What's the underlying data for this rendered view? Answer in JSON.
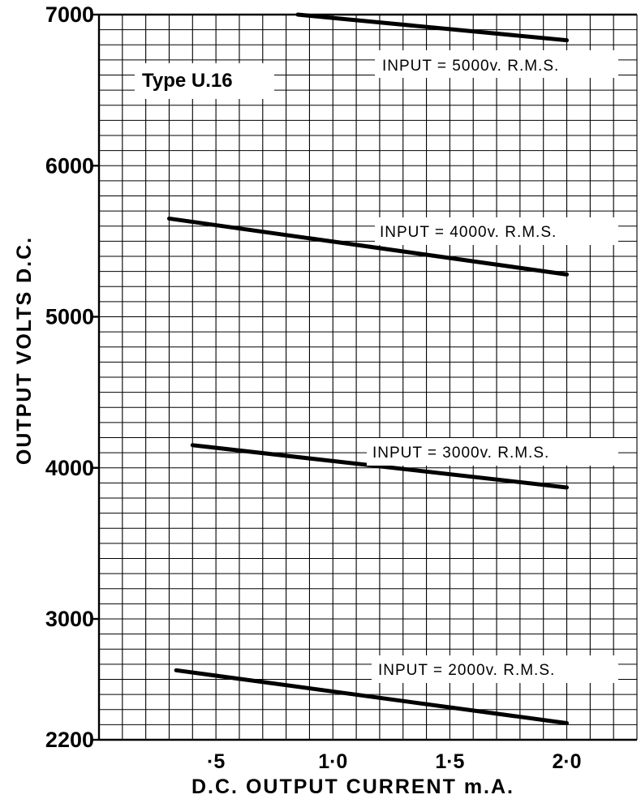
{
  "chart_data": {
    "type": "line",
    "title": "",
    "annotation": "Type U.16",
    "xlabel": "D.C. OUTPUT CURRENT m.A.",
    "ylabel": "OUTPUT VOLTS D.C.",
    "xlim": [
      0,
      2.3
    ],
    "ylim": [
      2200,
      7000
    ],
    "xticks": [
      {
        "value": 0.5,
        "label": "·5"
      },
      {
        "value": 1.0,
        "label": "1·0"
      },
      {
        "value": 1.5,
        "label": "1·5"
      },
      {
        "value": 2.0,
        "label": "2·0"
      }
    ],
    "yticks": [
      {
        "value": 2200,
        "label": "2200"
      },
      {
        "value": 3000,
        "label": "3000"
      },
      {
        "value": 4000,
        "label": "4000"
      },
      {
        "value": 5000,
        "label": "5000"
      },
      {
        "value": 6000,
        "label": "6000"
      },
      {
        "value": 7000,
        "label": "7000"
      }
    ],
    "grid": true,
    "series": [
      {
        "name": "INPUT = 5000v. R.M.S.",
        "x": [
          0.85,
          2.0
        ],
        "y": [
          7000,
          6830
        ]
      },
      {
        "name": "INPUT = 4000v. R.M.S.",
        "x": [
          0.3,
          2.0
        ],
        "y": [
          5650,
          5280
        ]
      },
      {
        "name": "INPUT = 3000v. R.M.S.",
        "x": [
          0.4,
          2.0
        ],
        "y": [
          4150,
          3870
        ]
      },
      {
        "name": "INPUT = 2000v. R.M.S.",
        "x": [
          0.33,
          2.0
        ],
        "y": [
          2660,
          2310
        ]
      }
    ],
    "colors": {
      "line": "#000000",
      "grid": "#000000",
      "background": "#ffffff"
    }
  }
}
